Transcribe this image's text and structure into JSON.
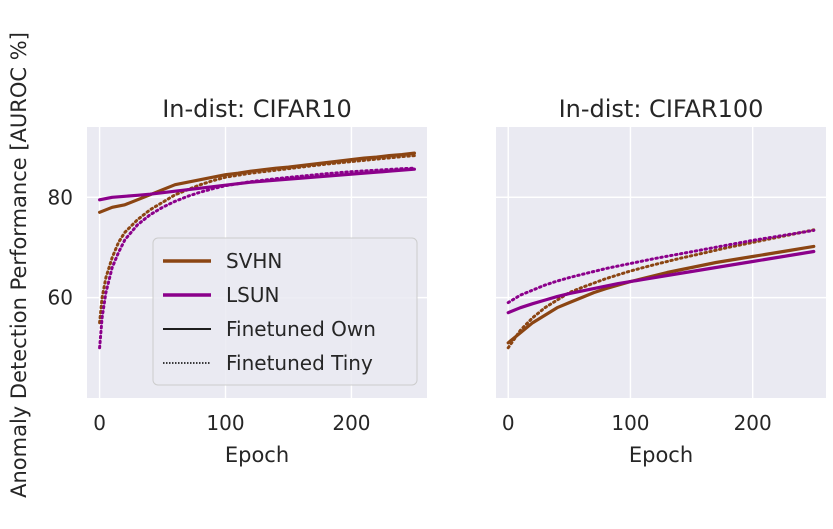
{
  "figure": {
    "ylabel": "Anomaly Detection Performance [AUROC %]"
  },
  "colors": {
    "axes_bg": "#eaeaf2",
    "grid": "#ffffff",
    "svhn": "#8b4513",
    "lsun": "#8b008b",
    "legend_line": "#000000"
  },
  "legend": {
    "entries": [
      {
        "label": "SVHN",
        "style": "solid",
        "color": "#8b4513"
      },
      {
        "label": "LSUN",
        "style": "solid",
        "color": "#8b008b"
      },
      {
        "label": "Finetuned Own",
        "style": "solid",
        "color": "#000000"
      },
      {
        "label": "Finetuned Tiny",
        "style": "dotted",
        "color": "#000000"
      }
    ]
  },
  "chart_data": [
    {
      "type": "line",
      "title": "In-dist: CIFAR10",
      "xlabel": "Epoch",
      "ylabel": "Anomaly Detection Performance [AUROC %]",
      "xlim": [
        -10,
        260
      ],
      "ylim": [
        40,
        94
      ],
      "xticks": [
        0,
        100,
        200
      ],
      "xtick_labels": [
        "0",
        "100",
        "200"
      ],
      "yticks": [
        60,
        80
      ],
      "ytick_labels": [
        "60",
        "80"
      ],
      "grid": true,
      "legend_position": "lower-right",
      "series": [
        {
          "name": "SVHN",
          "finetune": "Finetuned Own",
          "style": "solid",
          "color": "#8b4513",
          "x": [
            0,
            10,
            20,
            30,
            40,
            50,
            60,
            70,
            80,
            90,
            100,
            110,
            120,
            130,
            140,
            150,
            160,
            170,
            180,
            190,
            200,
            210,
            220,
            230,
            240,
            250
          ],
          "y": [
            77,
            78,
            78.5,
            79.5,
            80.5,
            81.5,
            82.5,
            83,
            83.5,
            84,
            84.5,
            84.8,
            85.2,
            85.5,
            85.8,
            86,
            86.3,
            86.6,
            86.9,
            87.2,
            87.5,
            87.8,
            88,
            88.3,
            88.5,
            88.8
          ]
        },
        {
          "name": "SVHN",
          "finetune": "Finetuned Tiny",
          "style": "dotted",
          "color": "#8b4513",
          "x": [
            0,
            2,
            5,
            10,
            15,
            20,
            30,
            40,
            50,
            60,
            70,
            80,
            90,
            100,
            120,
            140,
            160,
            180,
            200,
            220,
            240,
            250
          ],
          "y": [
            55,
            60,
            64,
            68,
            71,
            73,
            75.5,
            77.5,
            79,
            80.5,
            81.5,
            82.5,
            83.3,
            84,
            84.8,
            85.4,
            86,
            86.6,
            87.1,
            87.6,
            88.1,
            88.3
          ]
        },
        {
          "name": "LSUN",
          "finetune": "Finetuned Own",
          "style": "solid",
          "color": "#8b008b",
          "x": [
            0,
            10,
            20,
            30,
            40,
            50,
            60,
            70,
            80,
            90,
            100,
            110,
            120,
            130,
            140,
            150,
            160,
            170,
            180,
            190,
            200,
            210,
            220,
            230,
            240,
            250
          ],
          "y": [
            79.5,
            80,
            80.2,
            80.4,
            80.6,
            80.9,
            81.2,
            81.5,
            81.8,
            82.1,
            82.4,
            82.7,
            83,
            83.2,
            83.4,
            83.6,
            83.8,
            84,
            84.2,
            84.4,
            84.6,
            84.8,
            85,
            85.2,
            85.4,
            85.6
          ]
        },
        {
          "name": "LSUN",
          "finetune": "Finetuned Tiny",
          "style": "dotted",
          "color": "#8b008b",
          "x": [
            0,
            2,
            5,
            10,
            15,
            20,
            30,
            40,
            50,
            60,
            70,
            80,
            90,
            100,
            120,
            140,
            160,
            180,
            200,
            220,
            240,
            250
          ],
          "y": [
            50,
            56,
            61,
            66,
            69,
            71.5,
            74.5,
            76.5,
            78,
            79.2,
            80.2,
            81,
            81.7,
            82.3,
            83.1,
            83.7,
            84.2,
            84.7,
            85.1,
            85.4,
            85.7,
            85.8
          ]
        }
      ]
    },
    {
      "type": "line",
      "title": "In-dist: CIFAR100",
      "xlabel": "Epoch",
      "xlim": [
        -10,
        260
      ],
      "ylim": [
        40,
        94
      ],
      "xticks": [
        0,
        100,
        200
      ],
      "xtick_labels": [
        "0",
        "100",
        "200"
      ],
      "yticks": [
        60,
        80
      ],
      "ytick_labels": [],
      "grid": true,
      "series": [
        {
          "name": "SVHN",
          "finetune": "Finetuned Own",
          "style": "solid",
          "color": "#8b4513",
          "x": [
            0,
            10,
            20,
            30,
            40,
            50,
            60,
            70,
            80,
            90,
            100,
            110,
            120,
            130,
            140,
            150,
            160,
            170,
            180,
            190,
            200,
            210,
            220,
            230,
            240,
            250
          ],
          "y": [
            51,
            53,
            55,
            56.5,
            58,
            59,
            60,
            61,
            61.8,
            62.5,
            63.2,
            63.8,
            64.4,
            65,
            65.5,
            66,
            66.5,
            67,
            67.4,
            67.8,
            68.2,
            68.6,
            69,
            69.4,
            69.8,
            70.2
          ]
        },
        {
          "name": "SVHN",
          "finetune": "Finetuned Tiny",
          "style": "dotted",
          "color": "#8b4513",
          "x": [
            0,
            10,
            20,
            30,
            40,
            50,
            60,
            80,
            100,
            120,
            140,
            160,
            180,
            200,
            220,
            240,
            250
          ],
          "y": [
            50,
            53.5,
            56,
            58,
            59.5,
            61,
            62,
            63.8,
            65.3,
            66.6,
            67.8,
            68.9,
            70,
            71,
            72,
            73,
            73.5
          ]
        },
        {
          "name": "LSUN",
          "finetune": "Finetuned Own",
          "style": "solid",
          "color": "#8b008b",
          "x": [
            0,
            10,
            20,
            30,
            40,
            50,
            60,
            70,
            80,
            90,
            100,
            110,
            120,
            130,
            140,
            150,
            160,
            170,
            180,
            190,
            200,
            210,
            220,
            230,
            240,
            250
          ],
          "y": [
            57,
            58,
            58.8,
            59.5,
            60.2,
            60.8,
            61.3,
            61.8,
            62.3,
            62.8,
            63.2,
            63.6,
            64,
            64.4,
            64.8,
            65.2,
            65.6,
            66,
            66.4,
            66.8,
            67.2,
            67.6,
            68,
            68.4,
            68.8,
            69.2
          ]
        },
        {
          "name": "LSUN",
          "finetune": "Finetuned Tiny",
          "style": "dotted",
          "color": "#8b008b",
          "x": [
            0,
            10,
            20,
            30,
            40,
            50,
            60,
            80,
            100,
            120,
            140,
            160,
            180,
            200,
            220,
            240,
            250
          ],
          "y": [
            59,
            60.5,
            61.5,
            62.5,
            63.3,
            64,
            64.6,
            65.8,
            66.8,
            67.8,
            68.7,
            69.6,
            70.5,
            71.4,
            72.2,
            73,
            73.4
          ]
        }
      ]
    }
  ]
}
